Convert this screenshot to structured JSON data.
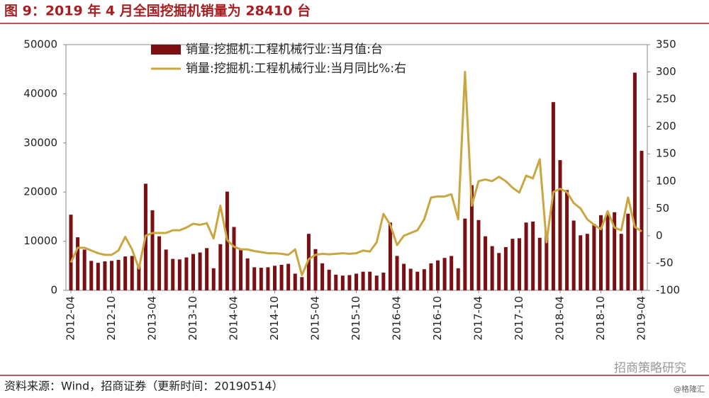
{
  "chart_data": {
    "type": "bar-line",
    "title": "图 9：2019 年 4 月全国挖掘机销量为 28410 台",
    "categories": [
      "2012-04",
      null,
      null,
      null,
      null,
      null,
      "2012-10",
      null,
      null,
      null,
      null,
      null,
      "2013-04",
      null,
      null,
      null,
      null,
      null,
      "2013-10",
      null,
      null,
      null,
      null,
      null,
      "2014-04",
      null,
      null,
      null,
      null,
      null,
      "2014-10",
      null,
      null,
      null,
      null,
      null,
      "2015-04",
      null,
      null,
      null,
      null,
      null,
      "2015-10",
      null,
      null,
      null,
      null,
      null,
      "2016-04",
      null,
      null,
      null,
      null,
      null,
      "2016-10",
      null,
      null,
      null,
      null,
      null,
      "2017-04",
      null,
      null,
      null,
      null,
      null,
      "2017-10",
      null,
      null,
      null,
      null,
      null,
      "2018-04",
      null,
      null,
      null,
      null,
      null,
      "2018-10",
      null,
      null,
      null,
      null,
      null,
      "2019-04"
    ],
    "series": [
      {
        "name": "销量:挖掘机:工程机械行业:当月值:台",
        "type": "bar",
        "color": "#7b0f12",
        "values": [
          15400,
          10800,
          8300,
          6000,
          5600,
          5900,
          6000,
          6200,
          6900,
          7000,
          5000,
          21700,
          16300,
          11000,
          8300,
          6400,
          6300,
          6700,
          7400,
          7700,
          8600,
          4500,
          9400,
          20100,
          12900,
          8300,
          6500,
          4700,
          4600,
          4700,
          5000,
          5200,
          5400,
          3400,
          2700,
          11500,
          8400,
          5500,
          4200,
          3200,
          3000,
          3100,
          3400,
          3800,
          3800,
          3000,
          3600,
          13800,
          7000,
          5400,
          4400,
          3800,
          4300,
          5500,
          6100,
          6600,
          7000,
          4500,
          14600,
          21400,
          14300,
          11000,
          9000,
          7600,
          8800,
          10500,
          10600,
          13800,
          14000,
          10700,
          11900,
          38300,
          26500,
          20400,
          14200,
          11200,
          11500,
          13500,
          15300,
          15700,
          15900,
          11500,
          15600,
          44300,
          28400
        ]
      },
      {
        "name": "销量:挖掘机:工程机械行业:当月同比%:右",
        "type": "line",
        "axis": "y2",
        "color": "#c9a640",
        "values": [
          -49,
          -22,
          -22,
          -27,
          -32,
          -35,
          -35,
          -27,
          -2,
          -25,
          -60,
          0,
          5,
          5,
          5,
          10,
          10,
          15,
          22,
          20,
          23,
          -5,
          55,
          -8,
          -20,
          -25,
          -25,
          -28,
          -30,
          -32,
          -32,
          -33,
          -35,
          -25,
          -72,
          -43,
          -35,
          -33,
          -34,
          -33,
          -32,
          -33,
          -32,
          -27,
          -29,
          -12,
          40,
          20,
          -17,
          0,
          5,
          10,
          30,
          70,
          72,
          72,
          76,
          30,
          300,
          55,
          100,
          103,
          100,
          108,
          100,
          88,
          79,
          110,
          105,
          140,
          -12,
          80,
          86,
          80,
          60,
          50,
          30,
          20,
          12,
          45,
          15,
          10,
          70,
          16,
          8
        ]
      }
    ],
    "ylim": [
      0,
      50000
    ],
    "yticks": [
      0,
      10000,
      20000,
      30000,
      40000,
      50000
    ],
    "y2lim": [
      -100,
      350
    ],
    "y2ticks": [
      -100,
      -50,
      0,
      50,
      100,
      150,
      200,
      250,
      300,
      350
    ],
    "legend": "top",
    "source": "资料来源：Wind，招商证券（更新时间：20190514）",
    "watermark": "招商策略研究",
    "credit": "@格隆汇"
  }
}
